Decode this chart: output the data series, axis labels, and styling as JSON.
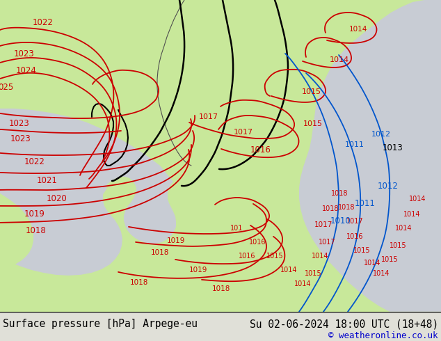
{
  "title_left": "Surface pressure [hPa] Arpege-eu",
  "title_right": "Su 02-06-2024 18:00 UTC (18+48)",
  "copyright": "© weatheronline.co.uk",
  "bg_color": "#e0e0d8",
  "land_color": "#c8e89a",
  "sea_color": "#c8ccd4",
  "isobar_red": "#cc0000",
  "isobar_blue": "#0055cc",
  "isobar_black": "#000000",
  "border_color": "#505050",
  "bottom_bg": "#ffffff",
  "bottom_text": "#000000",
  "copyright_color": "#0000cc",
  "font_size_bottom": 10.5,
  "font_size_label": 8.5
}
